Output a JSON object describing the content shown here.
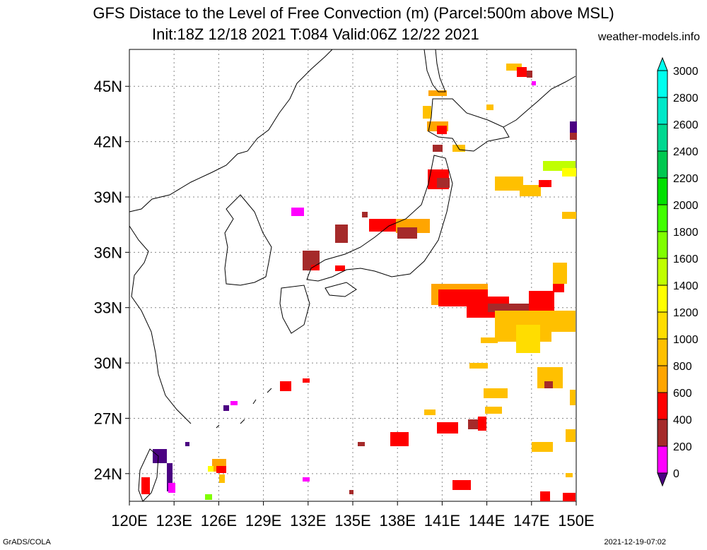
{
  "title": {
    "line1": "GFS Distace to the Level of Free Convection (m) (Parcel:500m above MSL)",
    "line2": "Init:18Z 12/18 2021 T:084 Valid:06Z 12/22 2021"
  },
  "site": "weather-models.info",
  "footer": {
    "left": "GrADS/COLA",
    "right": "2021-12-19-07:02"
  },
  "map": {
    "lon_range": [
      120,
      150
    ],
    "lat_range": [
      22.5,
      47.0
    ],
    "lon_ticks": [
      "120E",
      "123E",
      "126E",
      "129E",
      "132E",
      "135E",
      "138E",
      "141E",
      "144E",
      "147E",
      "150E"
    ],
    "lat_ticks": [
      "24N",
      "27N",
      "30N",
      "33N",
      "36N",
      "39N",
      "42N",
      "45N"
    ],
    "grid": true
  },
  "colorbar": {
    "levels": [
      "0",
      "200",
      "400",
      "600",
      "800",
      "1000",
      "1200",
      "1400",
      "1600",
      "1800",
      "2000",
      "2200",
      "2400",
      "2600",
      "2800",
      "3000"
    ],
    "colors": [
      "#4b0082",
      "#ff00ff",
      "#a52a2a",
      "#ff0000",
      "#ffa500",
      "#ffc000",
      "#ffdd00",
      "#ffff00",
      "#c0ff00",
      "#80ff00",
      "#40ff00",
      "#00e000",
      "#00c850",
      "#00d890",
      "#00e8c8",
      "#00ffee"
    ]
  }
}
